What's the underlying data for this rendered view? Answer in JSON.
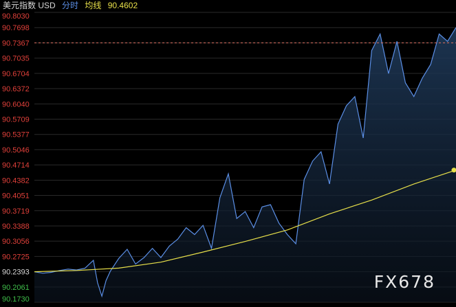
{
  "header": {
    "instrument": "美元指数 USD",
    "interval": "分时",
    "avg_label": "均线",
    "avg_value": "90.4602"
  },
  "watermark": "FX678",
  "colors": {
    "price_line": "#5b8fe6",
    "avg_line": "#e8e04a",
    "up_label": "#e0403a",
    "down_label": "#3fbf4a",
    "neutral_label": "#d8d8d8",
    "ref_line": "#e07060",
    "grid": "#2a2a2a"
  },
  "chart_data": {
    "type": "line",
    "title": "",
    "xlabel": "",
    "ylabel": "",
    "reference_value": 90.2393,
    "y_ticks": [
      "90.8030",
      "90.7698",
      "90.7367",
      "90.7035",
      "90.6704",
      "90.6372",
      "90.6040",
      "90.5709",
      "90.5377",
      "90.5046",
      "90.4714",
      "90.4382",
      "90.4051",
      "90.3719",
      "90.3388",
      "90.3056",
      "90.2725",
      "90.2393",
      "90.2061",
      "90.1730"
    ],
    "ylim": [
      90.173,
      90.803
    ],
    "grid": true,
    "dashed_level": 90.7367,
    "series": [
      {
        "name": "price",
        "x": [
          0,
          2,
          4,
          6,
          8,
          10,
          12,
          14,
          15,
          16,
          17,
          18,
          20,
          22,
          24,
          26,
          28,
          30,
          32,
          34,
          36,
          38,
          40,
          42,
          44,
          46,
          48,
          50,
          52,
          54,
          56,
          58,
          60,
          62,
          64,
          66,
          68,
          70,
          72,
          74,
          76,
          78,
          80,
          82,
          84,
          86,
          88,
          90,
          92,
          94,
          96,
          98,
          100
        ],
        "y": [
          90.2393,
          90.236,
          90.238,
          90.242,
          90.245,
          90.243,
          90.247,
          90.264,
          90.215,
          90.186,
          90.22,
          90.24,
          90.268,
          90.288,
          90.256,
          90.27,
          90.29,
          90.27,
          90.295,
          90.31,
          90.335,
          90.32,
          90.34,
          90.29,
          90.4,
          90.452,
          90.355,
          90.37,
          90.335,
          90.38,
          90.385,
          90.345,
          90.32,
          90.3,
          90.44,
          90.48,
          90.5,
          90.43,
          90.56,
          90.6,
          90.62,
          90.53,
          90.72,
          90.756,
          90.67,
          90.74,
          90.65,
          90.62,
          90.66,
          90.69,
          90.756,
          90.74,
          90.77
        ]
      },
      {
        "name": "avg",
        "x": [
          0,
          10,
          20,
          30,
          40,
          50,
          60,
          70,
          80,
          90,
          100
        ],
        "y": [
          90.2393,
          90.242,
          90.247,
          90.26,
          90.282,
          90.305,
          90.33,
          90.365,
          90.395,
          90.43,
          90.4602
        ]
      }
    ]
  }
}
